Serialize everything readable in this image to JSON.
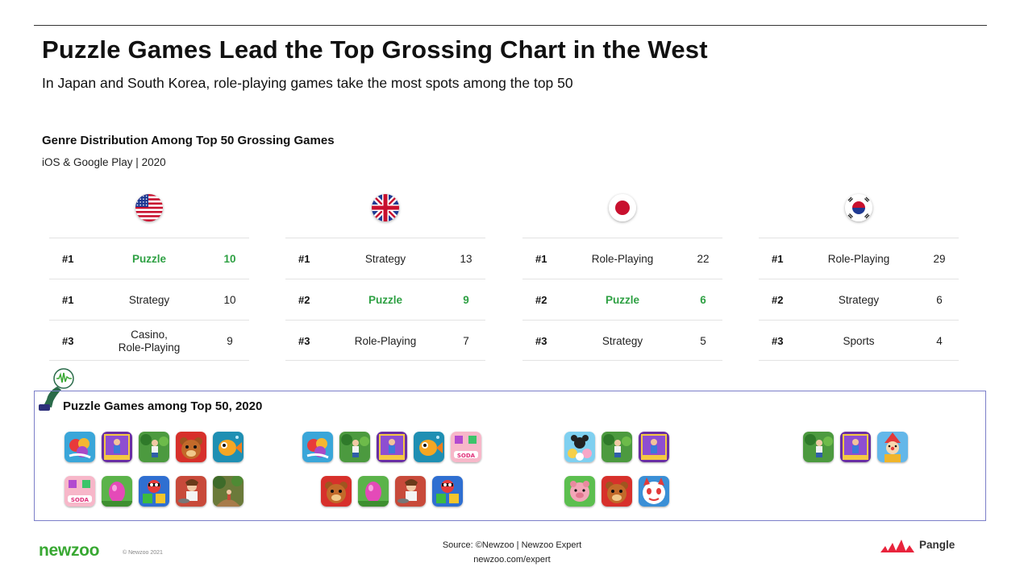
{
  "title": "Puzzle Games Lead the Top Grossing Chart in the West",
  "subtitle": "In Japan and South Korea, role-playing games take the most spots among the top 50",
  "chart_data": {
    "type": "table",
    "title": "Genre Distribution Among Top 50 Grossing Games",
    "subtitle": "iOS & Google Play | 2020",
    "columns": [
      {
        "flag": "us-flag-icon",
        "rows": [
          {
            "rank": "#1",
            "genre": "Puzzle",
            "count": "10",
            "highlight": true
          },
          {
            "rank": "#1",
            "genre": "Strategy",
            "count": "10",
            "highlight": false
          },
          {
            "rank": "#3",
            "genre": "Casino, Role-Playing",
            "count": "9",
            "highlight": false
          }
        ]
      },
      {
        "flag": "uk-flag-icon",
        "rows": [
          {
            "rank": "#1",
            "genre": "Strategy",
            "count": "13",
            "highlight": false
          },
          {
            "rank": "#2",
            "genre": "Puzzle",
            "count": "9",
            "highlight": true
          },
          {
            "rank": "#3",
            "genre": "Role-Playing",
            "count": "7",
            "highlight": false
          }
        ]
      },
      {
        "flag": "japan-flag-icon",
        "rows": [
          {
            "rank": "#1",
            "genre": "Role-Playing",
            "count": "22",
            "highlight": false
          },
          {
            "rank": "#2",
            "genre": "Puzzle",
            "count": "6",
            "highlight": true
          },
          {
            "rank": "#3",
            "genre": "Strategy",
            "count": "5",
            "highlight": false
          }
        ]
      },
      {
        "flag": "south-korea-flag-icon",
        "rows": [
          {
            "rank": "#1",
            "genre": "Role-Playing",
            "count": "29",
            "highlight": false
          },
          {
            "rank": "#2",
            "genre": "Strategy",
            "count": "6",
            "highlight": false
          },
          {
            "rank": "#3",
            "genre": "Sports",
            "count": "4",
            "highlight": false
          }
        ]
      }
    ]
  },
  "puzzle_section": {
    "title": "Puzzle Games among Top 50, 2020",
    "groups": [
      {
        "icons": [
          "candy-crush-icon",
          "hero-rescue-icon",
          "gardenscapes-icon",
          "toon-blast-bear-icon",
          "fishdom-icon",
          "candy-crush-soda-icon",
          "easter-egg-icon",
          "toy-blast-icon",
          "cooking-diary-icon",
          "homescapes-garden-icon"
        ]
      },
      {
        "icons": [
          "candy-crush-icon",
          "gardenscapes-icon",
          "hero-rescue-icon",
          "fishdom-icon",
          "candy-crush-soda-icon",
          "toon-blast-bear-icon",
          "easter-egg-icon",
          "cooking-diary-icon",
          "toy-blast-icon"
        ]
      },
      {
        "icons": [
          "tsum-tsum-icon",
          "gardenscapes-icon",
          "hero-rescue-icon",
          "pig-puzzle-icon",
          "toon-blast-bear-icon",
          "yokai-cat-icon"
        ]
      },
      {
        "icons": [
          "gardenscapes-icon",
          "hero-rescue-icon",
          "clown-puzzle-icon"
        ]
      }
    ]
  },
  "footer": {
    "logo": "newzoo",
    "copyright": "© Newzoo 2021",
    "source": "Source: ©Newzoo | Newzoo Expert",
    "url": "newzoo.com/expert",
    "partner": "Pangle"
  },
  "colors": {
    "highlight": "#2ea043",
    "box_border": "#7c7fc9",
    "newzoo_green": "#38a832",
    "pangle_red": "#e8243c"
  }
}
